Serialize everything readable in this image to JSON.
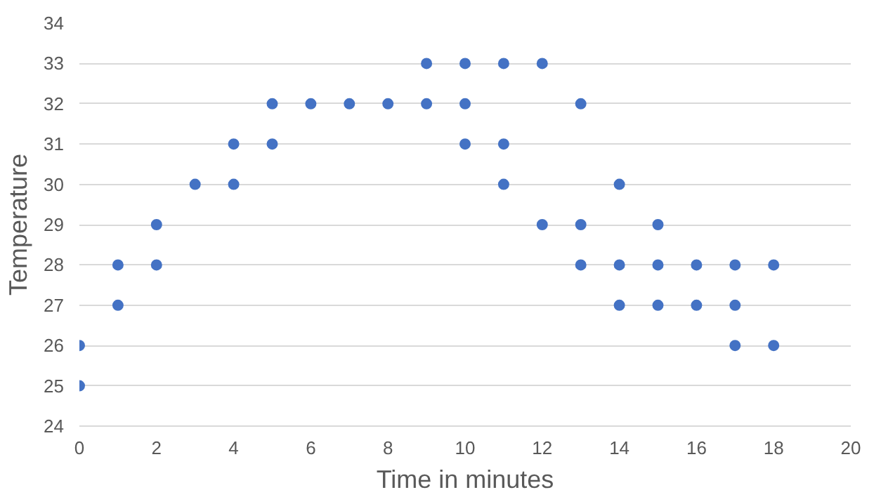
{
  "chart_data": {
    "type": "scatter",
    "xlabel": "Time in minutes",
    "ylabel": "Temperature",
    "marker": "circle",
    "grid": "y",
    "xlim": [
      0,
      20
    ],
    "xticks": [
      0,
      2,
      4,
      6,
      8,
      10,
      12,
      14,
      16,
      18,
      20
    ],
    "ylim": [
      24,
      34
    ],
    "yticks": [
      24,
      25,
      26,
      27,
      28,
      29,
      30,
      31,
      32,
      33,
      34
    ],
    "series": [
      {
        "color": "#4472c4",
        "x": [
          0,
          0,
          1,
          1,
          2,
          2,
          3,
          4,
          4,
          5,
          5,
          6,
          7,
          8,
          9,
          9,
          10,
          10,
          10,
          11,
          11,
          11,
          12,
          12,
          13,
          13,
          13,
          14,
          14,
          14,
          15,
          15,
          15,
          16,
          16,
          17,
          17,
          17,
          18,
          18
        ],
        "values": [
          26,
          25,
          28,
          27,
          29,
          28,
          30,
          31,
          30,
          32,
          31,
          32,
          32,
          32,
          33,
          32,
          33,
          32,
          31,
          33,
          31,
          30,
          33,
          29,
          32,
          29,
          28,
          30,
          28,
          27,
          29,
          28,
          27,
          28,
          27,
          28,
          27,
          26,
          28,
          26
        ]
      }
    ]
  }
}
